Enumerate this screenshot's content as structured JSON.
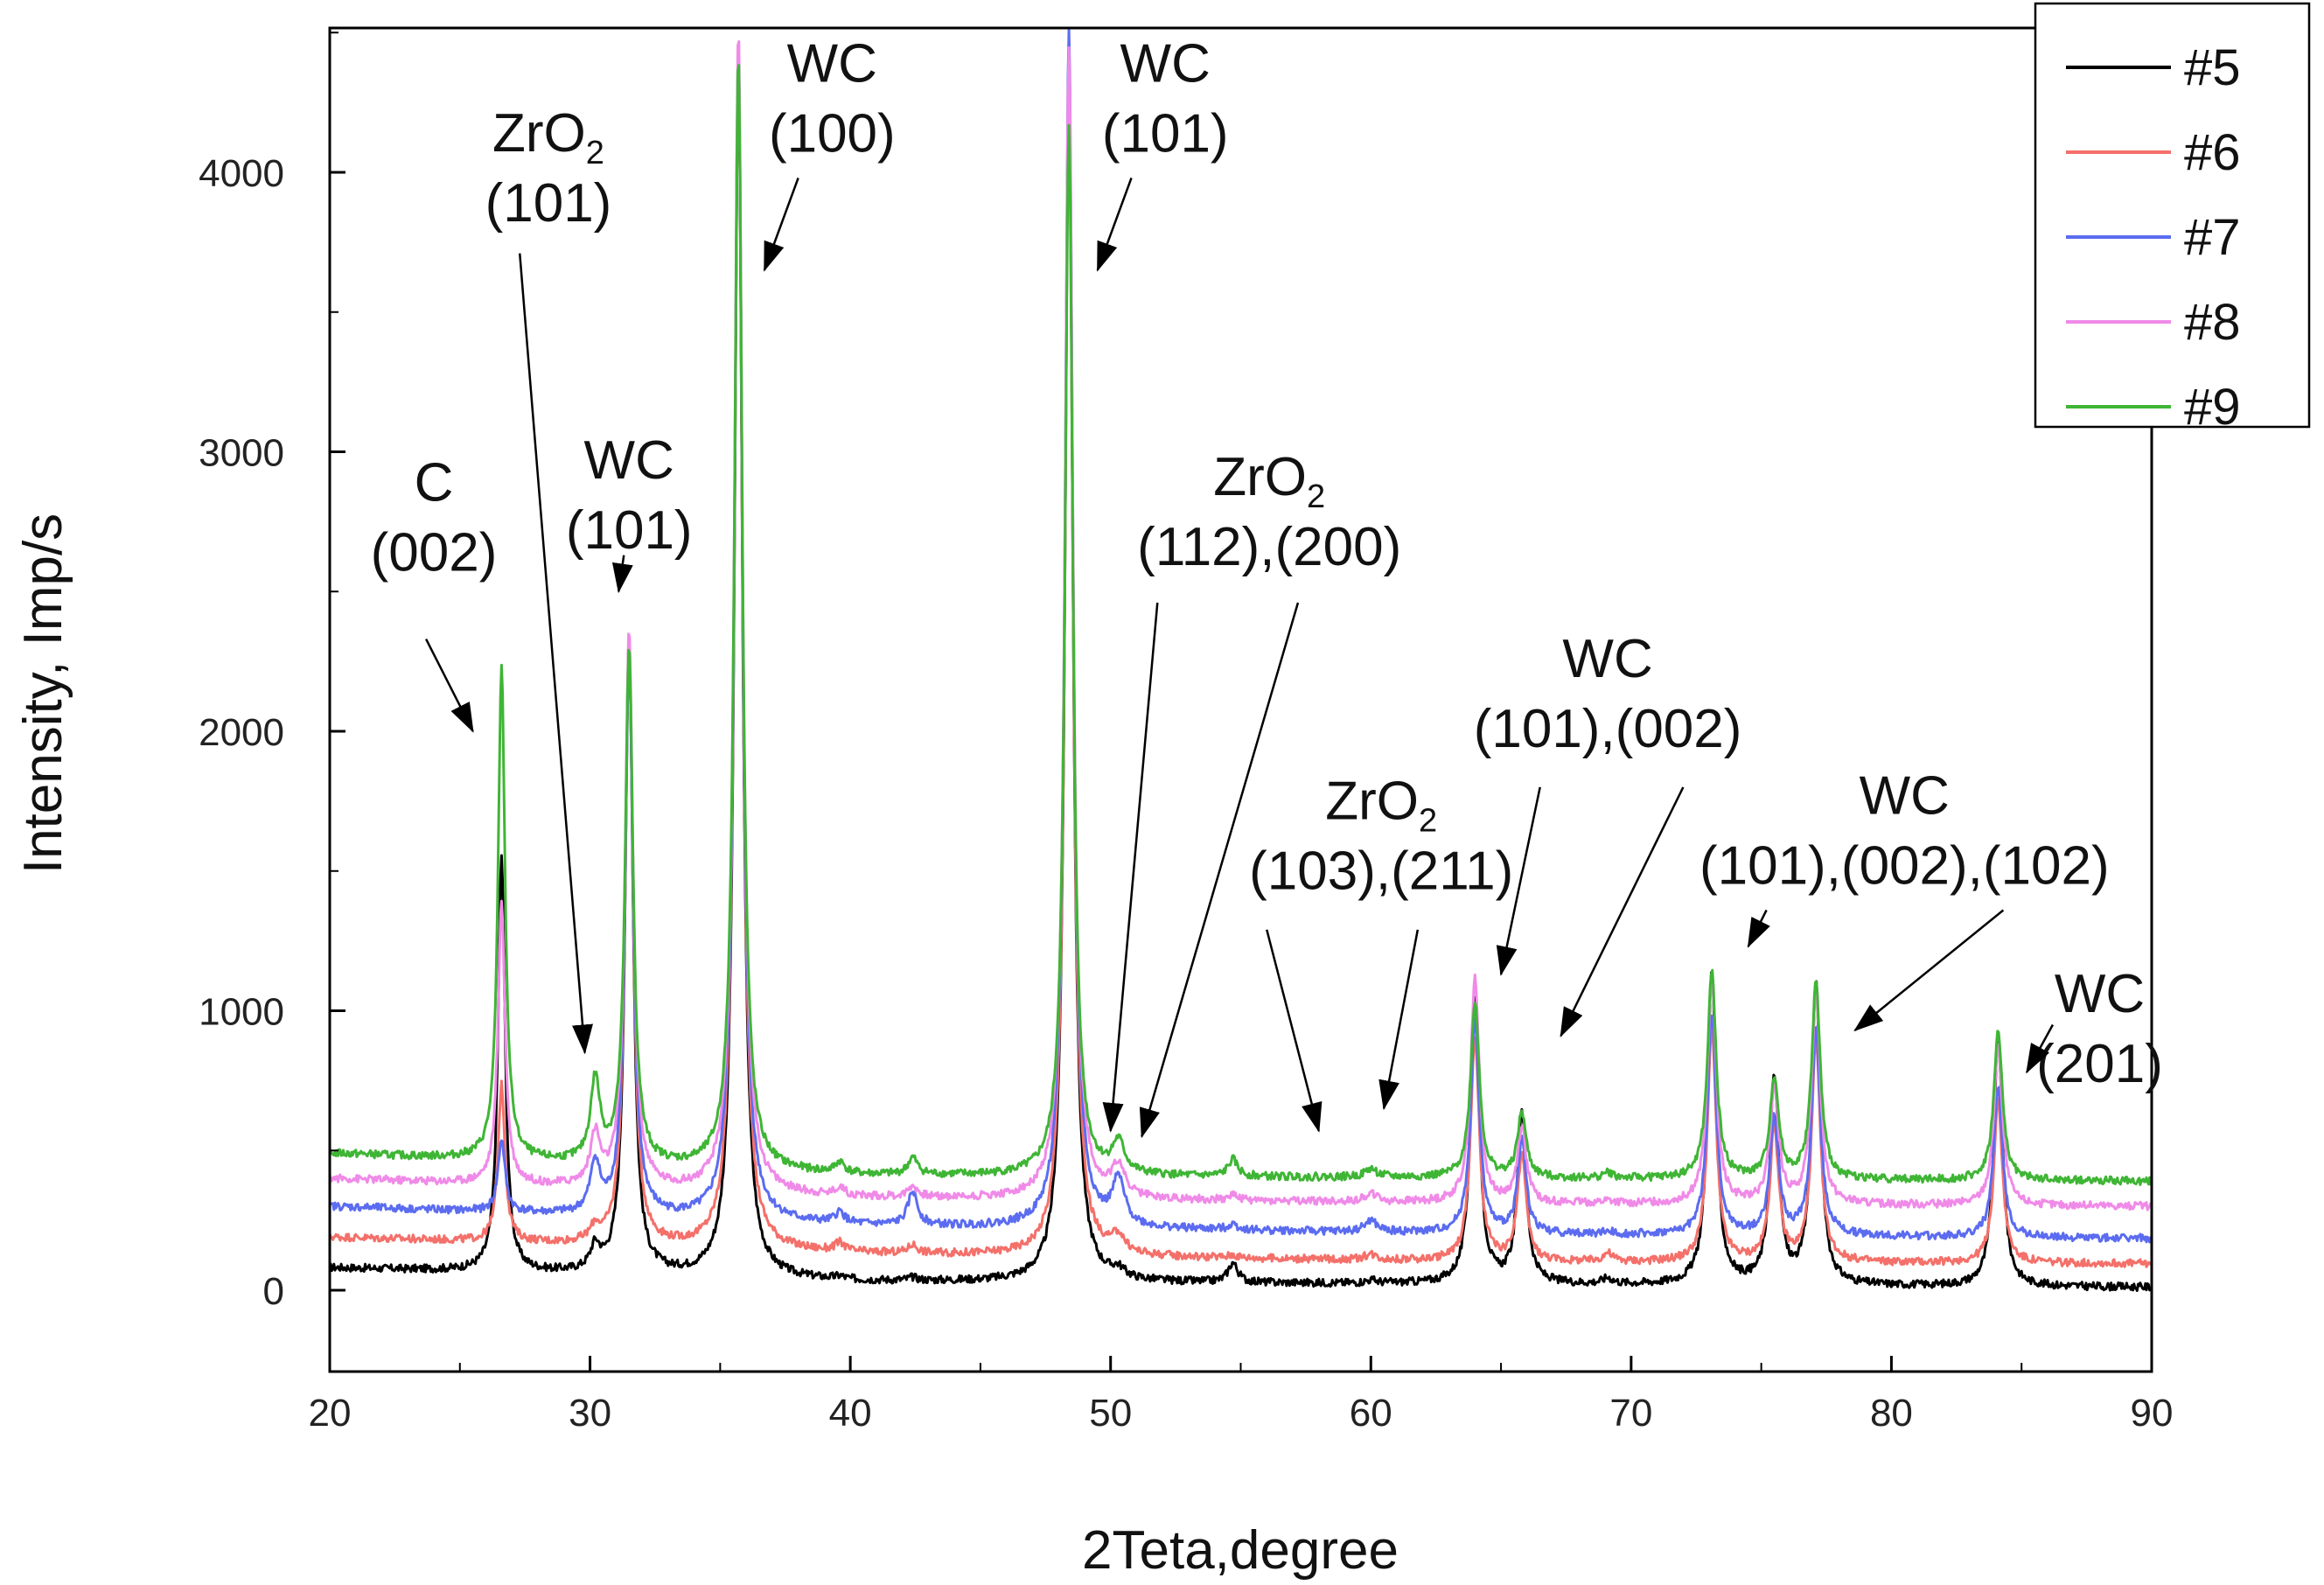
{
  "chart_data": {
    "type": "line",
    "xlabel": "2Teta,degree",
    "ylabel": "Intensity, Imp/s",
    "xlim": [
      20,
      90
    ],
    "ylim": [
      -300,
      4500
    ],
    "xticks": [
      20,
      30,
      40,
      50,
      60,
      70,
      80,
      90
    ],
    "yticks": [
      0,
      1000,
      2000,
      3000,
      4000
    ],
    "xtick_labels": [
      "20",
      "30",
      "40",
      "50",
      "60",
      "70",
      "80",
      "90"
    ],
    "ytick_labels": [
      "0",
      "1000",
      "2000",
      "3000",
      "4000"
    ],
    "legend_position": "top-right",
    "grid": false,
    "peaks": [
      {
        "x": 26.6,
        "w": 0.16
      },
      {
        "x": 30.2,
        "w": 0.22
      },
      {
        "x": 31.5,
        "w": 0.18
      },
      {
        "x": 35.7,
        "w": 0.18
      },
      {
        "x": 39.6,
        "w": 0.22
      },
      {
        "x": 42.4,
        "w": 0.22
      },
      {
        "x": 48.4,
        "w": 0.18
      },
      {
        "x": 50.3,
        "w": 0.28
      },
      {
        "x": 54.7,
        "w": 0.22
      },
      {
        "x": 60.0,
        "w": 0.28
      },
      {
        "x": 64.0,
        "w": 0.2
      },
      {
        "x": 65.8,
        "w": 0.2
      },
      {
        "x": 69.1,
        "w": 0.22
      },
      {
        "x": 73.1,
        "w": 0.2
      },
      {
        "x": 75.5,
        "w": 0.2
      },
      {
        "x": 77.1,
        "w": 0.2
      },
      {
        "x": 84.1,
        "w": 0.2
      }
    ],
    "series": [
      {
        "name": "#5",
        "color": "#000000",
        "baseline": [
          80,
          30,
          20,
          10
        ],
        "heights": [
          1480,
          80,
          2280,
          4370,
          10,
          10,
          4350,
          30,
          70,
          10,
          1030,
          620,
          20,
          1120,
          740,
          1080,
          900
        ]
      },
      {
        "name": "#6",
        "color": "#f4706a",
        "baseline": [
          190,
          130,
          100,
          95
        ],
        "heights": [
          560,
          50,
          2150,
          4280,
          30,
          30,
          4200,
          60,
          10,
          20,
          800,
          380,
          30,
          840,
          480,
          790,
          580
        ]
      },
      {
        "name": "#7",
        "color": "#5b6cf0",
        "baseline": [
          300,
          230,
          200,
          185
        ],
        "heights": [
          260,
          180,
          2000,
          4190,
          40,
          120,
          4290,
          160,
          20,
          40,
          760,
          330,
          10,
          790,
          420,
          740,
          540
        ]
      },
      {
        "name": "#8",
        "color": "#f08ae8",
        "baseline": [
          400,
          330,
          310,
          300
        ],
        "heights": [
          1010,
          180,
          1990,
          4160,
          30,
          40,
          4130,
          110,
          20,
          30,
          800,
          270,
          10,
          810,
          410,
          760,
          570
        ]
      },
      {
        "name": "#9",
        "color": "#3fb535",
        "baseline": [
          490,
          410,
          400,
          390
        ],
        "heights": [
          1760,
          290,
          1840,
          3990,
          40,
          60,
          3760,
          110,
          60,
          30,
          630,
          230,
          20,
          740,
          360,
          700,
          530
        ]
      }
    ],
    "annotations": [
      {
        "name": "c-002",
        "lines": [
          "C",
          "(002)"
        ],
        "text_x": 24.0,
        "text_y": 3000,
        "arrows": [
          {
            "from": [
              23.7,
              2330
            ],
            "to": [
              25.5,
              2000
            ]
          }
        ]
      },
      {
        "name": "zro2-101",
        "lines": [
          "ZrO",
          "(101)"
        ],
        "sub": "2",
        "text_x": 28.4,
        "text_y": 4250,
        "arrows": [
          {
            "from": [
              27.3,
              3710
            ],
            "to": [
              29.8,
              850
            ]
          }
        ]
      },
      {
        "name": "wc-101-a",
        "lines": [
          "WC",
          "(101)"
        ],
        "text_x": 31.5,
        "text_y": 3080,
        "arrows": [
          {
            "from": [
              31.3,
              2630
            ],
            "to": [
              31.1,
              2500
            ]
          }
        ]
      },
      {
        "name": "wc-100",
        "lines": [
          "WC",
          "(100)"
        ],
        "text_x": 39.3,
        "text_y": 4500,
        "arrows": [
          {
            "from": [
              38.0,
              3980
            ],
            "to": [
              36.7,
              3650
            ]
          }
        ]
      },
      {
        "name": "wc-101-b",
        "lines": [
          "WC",
          "(101)"
        ],
        "text_x": 52.1,
        "text_y": 4500,
        "arrows": [
          {
            "from": [
              50.8,
              3980
            ],
            "to": [
              49.5,
              3650
            ]
          }
        ]
      },
      {
        "name": "zro2-112-200",
        "lines": [
          "ZrO",
          "(112),(200)"
        ],
        "sub": "2",
        "text_x": 56.1,
        "text_y": 3020,
        "arrows": [
          {
            "from": [
              51.8,
              2460
            ],
            "to": [
              50.0,
              570
            ]
          },
          {
            "from": [
              57.2,
              2460
            ],
            "to": [
              51.2,
              550
            ]
          }
        ]
      },
      {
        "name": "zro2-103-211",
        "lines": [
          "ZrO",
          "(103),(211)"
        ],
        "sub": "2",
        "text_x": 60.4,
        "text_y": 1860,
        "arrows": [
          {
            "from": [
              56.0,
              1290
            ],
            "to": [
              58.0,
              570
            ]
          },
          {
            "from": [
              61.8,
              1290
            ],
            "to": [
              60.5,
              650
            ]
          }
        ]
      },
      {
        "name": "wc-101-002",
        "lines": [
          "WC",
          "(101),(002)"
        ],
        "text_x": 69.1,
        "text_y": 2370,
        "arrows": [
          {
            "from": [
              66.5,
              1800
            ],
            "to": [
              65.0,
              1130
            ]
          },
          {
            "from": [
              72.0,
              1800
            ],
            "to": [
              67.3,
              910
            ]
          }
        ]
      },
      {
        "name": "wc-101-002-102",
        "lines": [
          "WC",
          "(101),(002),(102)"
        ],
        "text_x": 80.5,
        "text_y": 1880,
        "arrows": [
          {
            "from": [
              75.2,
              1360
            ],
            "to": [
              74.5,
              1230
            ]
          },
          {
            "from": [
              84.3,
              1360
            ],
            "to": [
              78.6,
              930
            ]
          }
        ]
      },
      {
        "name": "wc-201",
        "lines": [
          "WC",
          "(201)"
        ],
        "text_x": 88.0,
        "text_y": 1170,
        "arrows": [
          {
            "from": [
              86.2,
              950
            ],
            "to": [
              85.2,
              780
            ]
          }
        ]
      }
    ]
  }
}
